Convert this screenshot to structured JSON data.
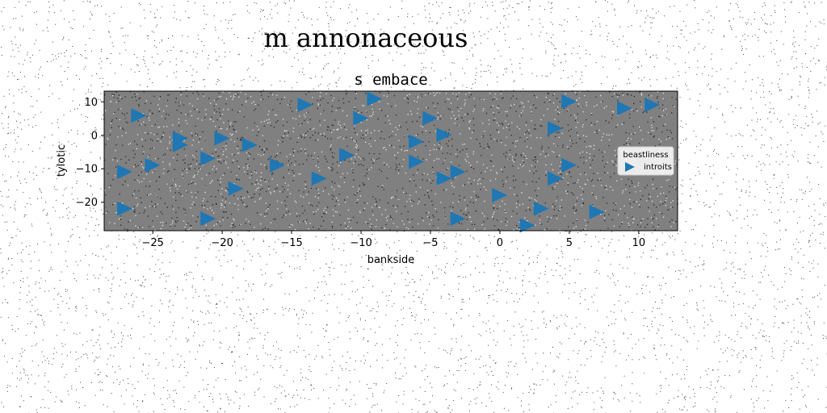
{
  "figure": {
    "suptitle": "m annonaceous",
    "background": "#ffffff",
    "speckle_color": "#000000"
  },
  "chart_data": {
    "type": "scatter",
    "title": "s embace",
    "xlabel": "bankside",
    "ylabel": "tylotic",
    "xlim": [
      -28.5,
      12.8
    ],
    "ylim": [
      -28.5,
      13.2
    ],
    "xticks": [
      -25,
      -20,
      -15,
      -10,
      -5,
      0,
      5,
      10
    ],
    "yticks": [
      -20,
      -10,
      0,
      10
    ],
    "xtick_labels": [
      "−25",
      "−20",
      "−15",
      "−10",
      "−5",
      "0",
      "5",
      "10"
    ],
    "ytick_labels": [
      "−20",
      "−10",
      "0",
      "10"
    ],
    "plot_background": "#808080",
    "grid": false,
    "legend": {
      "title": "beastliness",
      "placement": "center-right"
    },
    "series": [
      {
        "name": "introits",
        "marker": "triangle-right",
        "color": "#1f77b4",
        "points": [
          [
            -26.1,
            5.9
          ],
          [
            -23.1,
            -0.9
          ],
          [
            -23.1,
            -2.9
          ],
          [
            -21.1,
            -6.9
          ],
          [
            -20.1,
            -0.9
          ],
          [
            -18.1,
            -2.9
          ],
          [
            -16.1,
            -8.9
          ],
          [
            -14.1,
            9.1
          ],
          [
            -13.1,
            -12.9
          ],
          [
            -11.1,
            -5.9
          ],
          [
            -9.1,
            10.9
          ],
          [
            -10.1,
            5.1
          ],
          [
            -6.1,
            -1.9
          ],
          [
            -6.1,
            -7.9
          ],
          [
            -5.1,
            5.1
          ],
          [
            -4.1,
            0.1
          ],
          [
            -4.1,
            -12.9
          ],
          [
            -3.1,
            -10.9
          ],
          [
            -3.1,
            -24.9
          ],
          [
            -0.1,
            -17.9
          ],
          [
            1.9,
            -26.9
          ],
          [
            2.9,
            -21.9
          ],
          [
            3.9,
            2.1
          ],
          [
            3.9,
            -12.9
          ],
          [
            4.9,
            10.1
          ],
          [
            4.9,
            -8.9
          ],
          [
            6.9,
            -22.9
          ],
          [
            8.9,
            8.1
          ],
          [
            10.9,
            9.1
          ],
          [
            -21.1,
            -24.9
          ],
          [
            -19.1,
            -15.9
          ],
          [
            -25.1,
            -8.9
          ],
          [
            -27.1,
            -10.9
          ],
          [
            -27.1,
            -21.9
          ]
        ]
      }
    ]
  }
}
